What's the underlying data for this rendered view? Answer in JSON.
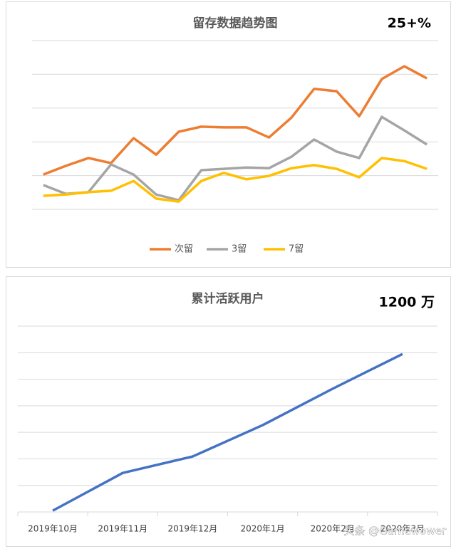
{
  "chart_data": [
    {
      "type": "line",
      "title": "留存数据趋势图",
      "annotation": "25+%",
      "categories": [
        null,
        null,
        null,
        null,
        null,
        null,
        null,
        null,
        null,
        null,
        null,
        null,
        null,
        null,
        null,
        null,
        null,
        null
      ],
      "series": [
        {
          "name": "次留",
          "color": "#ed7d31",
          "values": [
            1.03,
            1.29,
            1.52,
            1.37,
            2.11,
            1.62,
            2.3,
            2.45,
            2.43,
            2.43,
            2.13,
            2.72,
            3.57,
            3.5,
            2.76,
            3.86,
            4.24,
            3.88
          ]
        },
        {
          "name": "3留",
          "color": "#a5a5a5",
          "values": [
            0.72,
            0.46,
            0.51,
            1.33,
            1.03,
            0.44,
            0.27,
            1.16,
            1.2,
            1.24,
            1.22,
            1.56,
            2.07,
            1.71,
            1.52,
            2.74,
            2.34,
            1.92
          ]
        },
        {
          "name": "7留",
          "color": "#ffc000",
          "values": [
            0.4,
            0.44,
            0.51,
            0.55,
            0.84,
            0.32,
            0.23,
            0.84,
            1.08,
            0.89,
            0.99,
            1.22,
            1.31,
            1.2,
            0.95,
            1.52,
            1.43,
            1.2
          ]
        }
      ],
      "ylim": [
        0,
        5
      ],
      "yticks": [
        0,
        1,
        2,
        3,
        4,
        5
      ],
      "grid": true,
      "legend": "bottom"
    },
    {
      "type": "line",
      "title": "累计活跃用户",
      "annotation": "1200 万",
      "categories": [
        "2019年10月",
        "2019年11月",
        "2019年12月",
        "2020年1月",
        "2020年2月",
        "2020年3月"
      ],
      "series": [
        {
          "name": null,
          "color": "#4472c4",
          "values": [
            0.05,
            1.47,
            2.09,
            3.27,
            4.64,
            5.95
          ]
        }
      ],
      "ylim": [
        0,
        7
      ],
      "yticks": [
        0,
        1,
        2,
        3,
        4,
        5,
        6,
        7
      ],
      "grid": true
    }
  ],
  "watermark": "头条 @Gamewower"
}
